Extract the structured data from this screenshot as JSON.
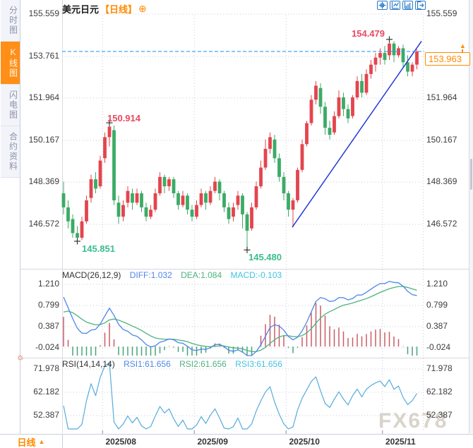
{
  "app": {
    "watermark": "FX678"
  },
  "sidebar": {
    "items": [
      {
        "label": "分时图",
        "active": false
      },
      {
        "label": "K线图",
        "active": true
      },
      {
        "label": "闪电图",
        "active": false
      },
      {
        "label": "合约资料",
        "active": false
      }
    ]
  },
  "header": {
    "title": "美元日元",
    "period_tag": "【日线】",
    "add_icon": "⊕"
  },
  "toolbar": {
    "icons": [
      "crosshair",
      "axis-scale",
      "axis-pan",
      "exit"
    ]
  },
  "main_chart": {
    "y_axis_labels": [
      "155.559",
      "153.761",
      "151.964",
      "150.167",
      "148.369",
      "146.572"
    ],
    "current_price": "153.963",
    "markers": {
      "high_recent": "154.479",
      "high_july": "150.914",
      "low_july": "145.851",
      "low_september": "145.480"
    }
  },
  "macd_panel": {
    "title": "MACD(26,12,9)",
    "diff_label": "DIFF:1.032",
    "dea_label": "DEA:1.084",
    "macd_label": "MACD:-0.103",
    "y_axis_labels": [
      "1.210",
      "0.799",
      "0.387",
      "-0.024"
    ]
  },
  "rsi_panel": {
    "title": "RSI(14,14,14)",
    "rsi1_label": "RSI1:61.656",
    "rsi2_label": "RSI2:61.656",
    "rsi3_label": "RSI3:61.656",
    "y_axis_labels": [
      "71.978",
      "62.182",
      "52.387"
    ]
  },
  "bottom_bar": {
    "period": "日线",
    "arrow": "▲",
    "dates": [
      "2025/08",
      "2025/09",
      "2025/10",
      "2025/11"
    ]
  },
  "colors": {
    "candle_up": "#e3454e",
    "candle_down": "#3cab66",
    "accent_orange": "#ff8a00",
    "price_line_blue": "#2f9bf2",
    "trendline_blue": "#1b2ed6",
    "diff_blue": "#4f86e8",
    "dea_green": "#4db27e",
    "macd_cyan": "#3fc3e0",
    "hist_up": "#c75d66",
    "hist_down": "#46a577",
    "rsi_blue": "#55abdc",
    "marker_high": "#e8495f",
    "marker_low": "#3bbd8f",
    "grid": "#c9ccda",
    "separator": "#d5d8e0",
    "cross": "#333333"
  },
  "chart_data": {
    "type": "candlestick",
    "symbol": "美元日元",
    "interval": "日线",
    "title": "美元日元 【日线】",
    "y_axis_ticks": [
      155.559,
      153.761,
      151.964,
      150.167,
      148.369,
      146.572
    ],
    "current_price": 153.963,
    "month_labels": [
      "2025/08",
      "2025/09",
      "2025/10",
      "2025/11"
    ],
    "month_break_indices": [
      9,
      29,
      49,
      70
    ],
    "annotations": [
      {
        "type": "low",
        "index": 3,
        "value": 145.851
      },
      {
        "type": "high",
        "index": 10,
        "value": 150.914
      },
      {
        "type": "low",
        "index": 40,
        "value": 145.48
      },
      {
        "type": "high",
        "index": 71,
        "value": 154.479
      }
    ],
    "trendline": {
      "from_index": 50,
      "from_price": 146.45,
      "to_x_end": true,
      "to_price": 154.4
    },
    "candles_ohlc": [
      [
        147.9,
        148.4,
        147.0,
        147.3
      ],
      [
        147.3,
        147.6,
        146.4,
        146.7
      ],
      [
        146.8,
        147.0,
        146.0,
        146.2
      ],
      [
        146.2,
        146.5,
        145.851,
        146.0
      ],
      [
        146.0,
        146.9,
        145.9,
        146.7
      ],
      [
        146.7,
        147.8,
        146.6,
        147.6
      ],
      [
        147.7,
        148.7,
        147.5,
        148.5
      ],
      [
        148.5,
        148.8,
        147.9,
        148.1
      ],
      [
        148.2,
        149.5,
        148.1,
        149.3
      ],
      [
        149.4,
        150.5,
        149.2,
        150.3
      ],
      [
        150.3,
        150.914,
        149.9,
        150.75
      ],
      [
        150.6,
        150.8,
        147.4,
        147.6
      ],
      [
        147.5,
        147.8,
        146.6,
        146.9
      ],
      [
        146.9,
        147.6,
        146.7,
        147.4
      ],
      [
        147.5,
        148.2,
        147.3,
        148.0
      ],
      [
        147.9,
        148.1,
        147.2,
        147.5
      ],
      [
        147.5,
        148.1,
        147.4,
        147.9
      ],
      [
        147.9,
        148.0,
        147.1,
        147.3
      ],
      [
        147.3,
        147.5,
        146.7,
        146.9
      ],
      [
        146.9,
        147.4,
        146.8,
        147.2
      ],
      [
        147.2,
        148.1,
        147.1,
        147.9
      ],
      [
        147.9,
        148.8,
        147.8,
        148.6
      ],
      [
        148.6,
        148.7,
        147.9,
        148.2
      ],
      [
        148.2,
        148.6,
        148.0,
        148.5
      ],
      [
        148.5,
        148.6,
        147.7,
        147.9
      ],
      [
        147.9,
        148.0,
        147.2,
        147.4
      ],
      [
        147.4,
        148.0,
        147.3,
        147.8
      ],
      [
        147.8,
        147.9,
        147.0,
        147.2
      ],
      [
        147.2,
        147.4,
        146.7,
        146.9
      ],
      [
        146.9,
        147.6,
        146.8,
        147.4
      ],
      [
        147.4,
        148.1,
        147.3,
        147.9
      ],
      [
        147.9,
        148.0,
        147.2,
        147.5
      ],
      [
        147.5,
        148.2,
        147.4,
        148.0
      ],
      [
        148.0,
        148.6,
        147.9,
        148.4
      ],
      [
        148.4,
        148.5,
        147.6,
        147.9
      ],
      [
        147.9,
        148.0,
        147.1,
        147.3
      ],
      [
        147.3,
        147.5,
        146.6,
        146.8
      ],
      [
        146.9,
        147.5,
        146.7,
        147.3
      ],
      [
        147.4,
        148.0,
        147.2,
        147.8
      ],
      [
        147.8,
        147.9,
        146.4,
        147.0
      ],
      [
        147.0,
        147.1,
        145.48,
        146.3
      ],
      [
        146.4,
        147.5,
        146.3,
        147.3
      ],
      [
        147.3,
        148.4,
        147.2,
        148.2
      ],
      [
        148.2,
        149.3,
        148.1,
        149.0
      ],
      [
        149.0,
        150.2,
        148.9,
        149.8
      ],
      [
        149.8,
        150.5,
        149.6,
        150.3
      ],
      [
        150.2,
        150.4,
        149.2,
        149.4
      ],
      [
        149.4,
        149.6,
        148.4,
        148.6
      ],
      [
        148.6,
        148.8,
        147.6,
        147.9
      ],
      [
        147.9,
        148.0,
        146.9,
        147.2
      ],
      [
        147.2,
        147.7,
        146.45,
        147.6
      ],
      [
        147.6,
        149.0,
        147.5,
        148.9
      ],
      [
        148.9,
        150.2,
        148.8,
        150.0
      ],
      [
        150.0,
        151.0,
        149.9,
        150.9
      ],
      [
        150.9,
        152.1,
        150.8,
        151.9
      ],
      [
        151.9,
        152.7,
        151.7,
        152.5
      ],
      [
        152.4,
        152.6,
        151.3,
        151.6
      ],
      [
        151.6,
        151.8,
        150.4,
        150.7
      ],
      [
        150.7,
        151.0,
        150.2,
        150.4
      ],
      [
        150.5,
        151.4,
        150.4,
        151.2
      ],
      [
        151.2,
        152.3,
        151.1,
        152.0
      ],
      [
        152.0,
        152.2,
        151.2,
        151.5
      ],
      [
        151.5,
        151.7,
        150.9,
        151.1
      ],
      [
        151.2,
        152.1,
        151.1,
        152.0
      ],
      [
        152.0,
        152.9,
        151.9,
        152.7
      ],
      [
        152.7,
        153.0,
        152.0,
        152.2
      ],
      [
        152.2,
        153.2,
        152.1,
        153.0
      ],
      [
        153.0,
        153.6,
        152.8,
        153.4
      ],
      [
        153.4,
        153.9,
        153.1,
        153.7
      ],
      [
        153.7,
        154.1,
        153.4,
        153.9
      ],
      [
        153.9,
        154.2,
        153.4,
        153.6
      ],
      [
        153.8,
        154.479,
        153.6,
        154.3
      ],
      [
        154.3,
        154.4,
        153.5,
        153.8
      ],
      [
        153.8,
        154.2,
        153.7,
        154.1
      ],
      [
        154.1,
        154.25,
        153.3,
        153.5
      ],
      [
        153.5,
        153.8,
        152.9,
        153.1
      ],
      [
        153.1,
        153.5,
        152.9,
        153.4
      ],
      [
        153.4,
        154.05,
        153.2,
        153.963
      ]
    ],
    "indicators": {
      "macd": {
        "params": [
          26,
          12,
          9
        ],
        "diff": 1.032,
        "dea": 1.084,
        "macd": -0.103,
        "axis_ticks": [
          1.21,
          0.799,
          0.387,
          -0.024
        ]
      },
      "rsi": {
        "params": [
          14,
          14,
          14
        ],
        "rsi1": 61.656,
        "rsi2": 61.656,
        "rsi3": 61.656,
        "axis_ticks": [
          71.978,
          62.182,
          52.387
        ]
      }
    }
  }
}
